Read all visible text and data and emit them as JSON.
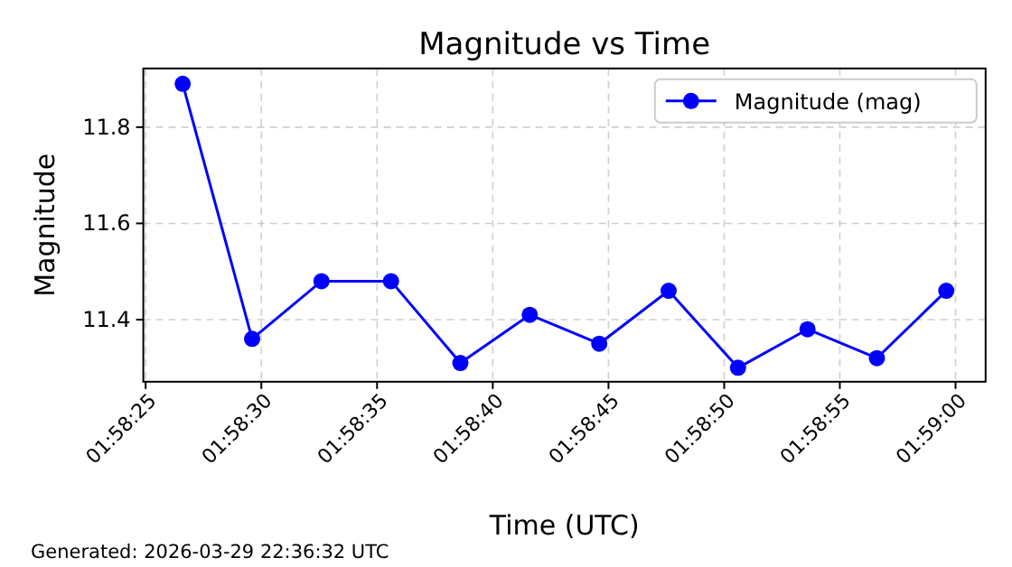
{
  "chart_data": {
    "type": "line",
    "title": "Magnitude vs Time",
    "xlabel": "Time (UTC)",
    "ylabel": "Magnitude",
    "x": [
      1.974056,
      1.974889,
      1.975722,
      1.976556,
      1.977389,
      1.978222,
      1.979056,
      1.979889,
      1.980722,
      1.981556,
      1.982389,
      1.983222
    ],
    "series": [
      {
        "name": "Magnitude (mag)",
        "color": "#0000ff",
        "values": [
          11.89,
          11.36,
          11.48,
          11.48,
          11.31,
          11.41,
          11.35,
          11.46,
          11.3,
          11.38,
          11.32,
          11.46
        ]
      }
    ],
    "xlim": [
      1.973583,
      1.983694
    ],
    "xticks": [
      {
        "value": 1.973611,
        "label": "01:58:25"
      },
      {
        "value": 1.975,
        "label": "01:58:30"
      },
      {
        "value": 1.976389,
        "label": "01:58:35"
      },
      {
        "value": 1.977778,
        "label": "01:58:40"
      },
      {
        "value": 1.979167,
        "label": "01:58:45"
      },
      {
        "value": 1.980556,
        "label": "01:58:50"
      },
      {
        "value": 1.981944,
        "label": "01:58:55"
      },
      {
        "value": 1.983333,
        "label": "01:59:00"
      }
    ],
    "ylim": [
      11.271,
      11.922
    ],
    "yticks": [
      11.4,
      11.6,
      11.8
    ],
    "grid": true,
    "legend": "top right",
    "marker": "circle",
    "line_style": "solid",
    "annotations": [
      "Generated: 2026-03-29 22:36:32 UTC"
    ]
  }
}
